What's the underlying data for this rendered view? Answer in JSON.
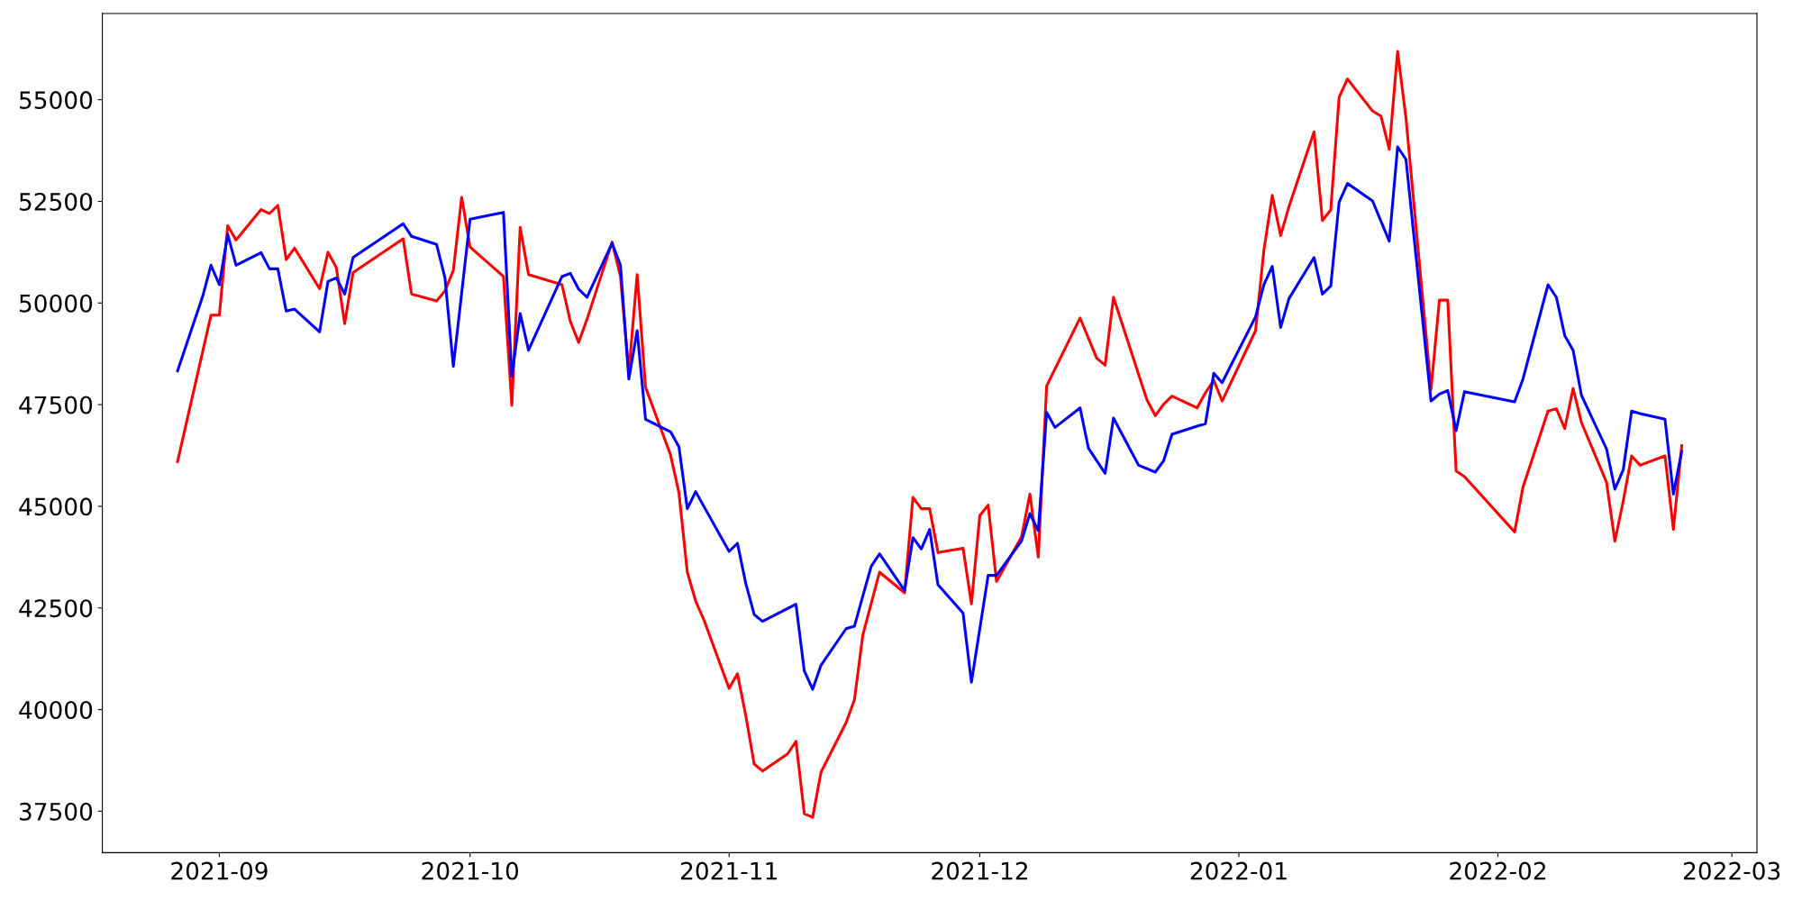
{
  "chart_data": {
    "type": "line",
    "xlim": [
      "2021-08-18",
      "2022-03-04"
    ],
    "xticks": [
      "2021-09",
      "2021-10",
      "2021-11",
      "2021-12",
      "2022-01",
      "2022-02",
      "2022-03"
    ],
    "ylim": [
      36480,
      57120
    ],
    "yticks": [
      37500,
      40000,
      42500,
      45000,
      47500,
      50000,
      52500,
      55000
    ],
    "grid": false,
    "series": [
      {
        "color": "#ff0000",
        "x": [
          "2021-08-27",
          "2021-08-31",
          "2021-09-01",
          "2021-09-02",
          "2021-09-03",
          "2021-09-06",
          "2021-09-07",
          "2021-09-08",
          "2021-09-09",
          "2021-09-10",
          "2021-09-13",
          "2021-09-14",
          "2021-09-15",
          "2021-09-16",
          "2021-09-17",
          "2021-09-23",
          "2021-09-24",
          "2021-09-27",
          "2021-09-28",
          "2021-09-29",
          "2021-09-30",
          "2021-10-01",
          "2021-10-05",
          "2021-10-06",
          "2021-10-07",
          "2021-10-08",
          "2021-10-12",
          "2021-10-13",
          "2021-10-14",
          "2021-10-15",
          "2021-10-18",
          "2021-10-19",
          "2021-10-20",
          "2021-10-21",
          "2021-10-22",
          "2021-10-25",
          "2021-10-26",
          "2021-10-27",
          "2021-10-28",
          "2021-10-29",
          "2021-11-01",
          "2021-11-02",
          "2021-11-03",
          "2021-11-04",
          "2021-11-05",
          "2021-11-08",
          "2021-11-09",
          "2021-11-10",
          "2021-11-11",
          "2021-11-12",
          "2021-11-15",
          "2021-11-16",
          "2021-11-17",
          "2021-11-19",
          "2021-11-22",
          "2021-11-23",
          "2021-11-24",
          "2021-11-25",
          "2021-11-26",
          "2021-11-29",
          "2021-11-30",
          "2021-12-01",
          "2021-12-02",
          "2021-12-03",
          "2021-12-06",
          "2021-12-07",
          "2021-12-08",
          "2021-12-09",
          "2021-12-13",
          "2021-12-15",
          "2021-12-16",
          "2021-12-17",
          "2021-12-21",
          "2021-12-22",
          "2021-12-23",
          "2021-12-24",
          "2021-12-27",
          "2021-12-28",
          "2021-12-29",
          "2021-12-30",
          "2022-01-03",
          "2022-01-04",
          "2022-01-05",
          "2022-01-06",
          "2022-01-07",
          "2022-01-10",
          "2022-01-11",
          "2022-01-12",
          "2022-01-13",
          "2022-01-14",
          "2022-01-17",
          "2022-01-18",
          "2022-01-19",
          "2022-01-20",
          "2022-01-21",
          "2022-01-24",
          "2022-01-25",
          "2022-01-26",
          "2022-01-27",
          "2022-01-28",
          "2022-02-03",
          "2022-02-04",
          "2022-02-07",
          "2022-02-08",
          "2022-02-09",
          "2022-02-10",
          "2022-02-11",
          "2022-02-14",
          "2022-02-15",
          "2022-02-16",
          "2022-02-17",
          "2022-02-18",
          "2022-02-21",
          "2022-02-22",
          "2022-02-23"
        ],
        "values": [
          46100,
          49700,
          49700,
          51900,
          51550,
          52300,
          52200,
          52400,
          51070,
          51350,
          50350,
          51250,
          50870,
          49490,
          50750,
          51580,
          50220,
          50050,
          50300,
          50800,
          52600,
          51380,
          50650,
          47480,
          51860,
          50700,
          50450,
          49550,
          49030,
          49600,
          51500,
          50650,
          48300,
          50700,
          47930,
          46260,
          45330,
          43380,
          42670,
          42200,
          40520,
          40880,
          39850,
          38660,
          38490,
          38910,
          39220,
          37440,
          37350,
          38460,
          39680,
          40240,
          41830,
          43380,
          42870,
          45220,
          44940,
          44940,
          43860,
          43970,
          42600,
          44770,
          45030,
          43150,
          44250,
          45300,
          43750,
          47960,
          49630,
          48640,
          48470,
          50140,
          47620,
          47230,
          47510,
          47710,
          47420,
          47790,
          48100,
          47590,
          49320,
          51300,
          52650,
          51660,
          52370,
          54210,
          52030,
          52290,
          55060,
          55510,
          54720,
          54600,
          53780,
          56190,
          54550,
          47880,
          50070,
          50070,
          45870,
          45730,
          44370,
          45470,
          47340,
          47400,
          46910,
          47900,
          47060,
          45590,
          44140,
          45130,
          46240,
          46010,
          46240,
          44430,
          46490
        ]
      },
      {
        "color": "#0000ff",
        "x": [
          "2021-08-27",
          "2021-08-30",
          "2021-08-31",
          "2021-09-01",
          "2021-09-02",
          "2021-09-03",
          "2021-09-06",
          "2021-09-07",
          "2021-09-08",
          "2021-09-09",
          "2021-09-10",
          "2021-09-13",
          "2021-09-14",
          "2021-09-15",
          "2021-09-16",
          "2021-09-17",
          "2021-09-23",
          "2021-09-24",
          "2021-09-27",
          "2021-09-28",
          "2021-09-29",
          "2021-10-01",
          "2021-10-05",
          "2021-10-06",
          "2021-10-07",
          "2021-10-08",
          "2021-10-12",
          "2021-10-13",
          "2021-10-14",
          "2021-10-15",
          "2021-10-18",
          "2021-10-19",
          "2021-10-20",
          "2021-10-21",
          "2021-10-22",
          "2021-10-25",
          "2021-10-26",
          "2021-10-27",
          "2021-10-28",
          "2021-10-29",
          "2021-11-01",
          "2021-11-02",
          "2021-11-03",
          "2021-11-04",
          "2021-11-05",
          "2021-11-09",
          "2021-11-10",
          "2021-11-11",
          "2021-11-12",
          "2021-11-15",
          "2021-11-16",
          "2021-11-17",
          "2021-11-18",
          "2021-11-19",
          "2021-11-22",
          "2021-11-23",
          "2021-11-24",
          "2021-11-25",
          "2021-11-26",
          "2021-11-29",
          "2021-11-30",
          "2021-12-02",
          "2021-12-03",
          "2021-12-06",
          "2021-12-07",
          "2021-12-08",
          "2021-12-09",
          "2021-12-10",
          "2021-12-13",
          "2021-12-14",
          "2021-12-16",
          "2021-12-17",
          "2021-12-20",
          "2021-12-22",
          "2021-12-23",
          "2021-12-24",
          "2021-12-27",
          "2021-12-28",
          "2021-12-29",
          "2021-12-30",
          "2022-01-03",
          "2022-01-04",
          "2022-01-05",
          "2022-01-06",
          "2022-01-07",
          "2022-01-10",
          "2022-01-11",
          "2022-01-12",
          "2022-01-13",
          "2022-01-14",
          "2022-01-17",
          "2022-01-19",
          "2022-01-20",
          "2022-01-21",
          "2022-01-24",
          "2022-01-25",
          "2022-01-26",
          "2022-01-27",
          "2022-01-28",
          "2022-02-03",
          "2022-02-04",
          "2022-02-07",
          "2022-02-08",
          "2022-02-09",
          "2022-02-10",
          "2022-02-11",
          "2022-02-14",
          "2022-02-15",
          "2022-02-16",
          "2022-02-17",
          "2022-02-18",
          "2022-02-21",
          "2022-02-22",
          "2022-02-23"
        ],
        "values": [
          48330,
          50160,
          50930,
          50450,
          51690,
          50930,
          51240,
          50840,
          50840,
          49800,
          49850,
          49290,
          50530,
          50620,
          50220,
          51120,
          51950,
          51640,
          51440,
          50620,
          48440,
          52060,
          52230,
          48190,
          49740,
          48840,
          50650,
          50730,
          50340,
          50140,
          51470,
          50930,
          48130,
          49320,
          47140,
          46830,
          46460,
          44940,
          45360,
          44990,
          43890,
          44090,
          43100,
          42340,
          42170,
          42590,
          40950,
          40500,
          41090,
          41990,
          42050,
          42790,
          43520,
          43830,
          42930,
          44230,
          43950,
          44430,
          43070,
          42370,
          40670,
          43300,
          43300,
          44150,
          44820,
          44400,
          47310,
          46940,
          47420,
          46430,
          45810,
          47170,
          46010,
          45840,
          46120,
          46770,
          46970,
          47030,
          48270,
          48040,
          49660,
          50450,
          50900,
          49400,
          50110,
          51120,
          50220,
          50420,
          52480,
          52940,
          52510,
          51520,
          53840,
          53530,
          47590,
          47760,
          47850,
          46860,
          47820,
          47570,
          48130,
          50450,
          50140,
          49200,
          48840,
          47730,
          46410,
          45420,
          45900,
          47340,
          47280,
          47140,
          45300,
          46350
        ]
      }
    ]
  }
}
